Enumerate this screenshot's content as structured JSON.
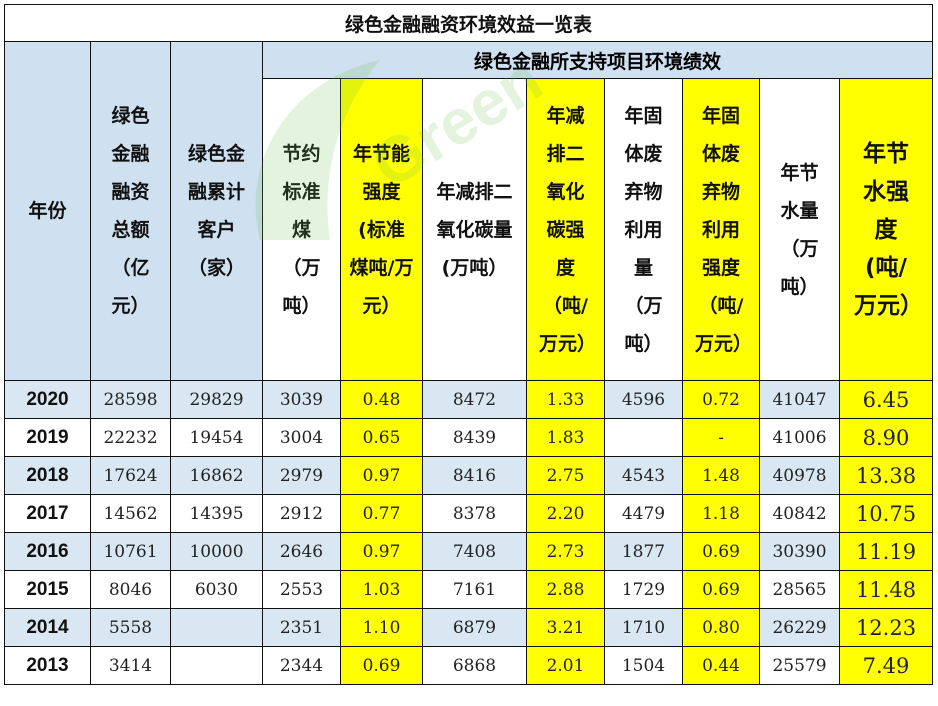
{
  "title": "绿色金融融资环境效益一览表",
  "group_header": "绿色金融所支持项目环境绩效",
  "columns": [
    "年份",
    "绿色金融融资总额（亿元）",
    "绿色金融累计客户（家）",
    "节约标准煤（万吨）",
    "年节能强度(标准煤吨/万元）",
    "年减排二氧化碳量(万吨）",
    "年减排二氧化碳强度（吨/万元）",
    "年固体废弃物利用量（万吨）",
    "年固体废弃物利用强度（吨/万元）",
    "年节水量（万吨）",
    "年节水强度(吨/万元）"
  ],
  "rows": [
    {
      "year": "2020",
      "v": [
        "28598",
        "29829",
        "3039",
        "0.48",
        "8472",
        "1.33",
        "4596",
        "0.72",
        "41047",
        "6.45"
      ]
    },
    {
      "year": "2019",
      "v": [
        "22232",
        "19454",
        "3004",
        "0.65",
        "8439",
        "1.83",
        "",
        "-",
        "41006",
        "8.90"
      ]
    },
    {
      "year": "2018",
      "v": [
        "17624",
        "16862",
        "2979",
        "0.97",
        "8416",
        "2.75",
        "4543",
        "1.48",
        "40978",
        "13.38"
      ]
    },
    {
      "year": "2017",
      "v": [
        "14562",
        "14395",
        "2912",
        "0.77",
        "8378",
        "2.20",
        "4479",
        "1.18",
        "40842",
        "10.75"
      ]
    },
    {
      "year": "2016",
      "v": [
        "10761",
        "10000",
        "2646",
        "0.97",
        "7408",
        "2.73",
        "1877",
        "0.69",
        "30390",
        "11.19"
      ]
    },
    {
      "year": "2015",
      "v": [
        "8046",
        "6030",
        "2553",
        "1.03",
        "7161",
        "2.88",
        "1729",
        "0.69",
        "28565",
        "11.48"
      ]
    },
    {
      "year": "2014",
      "v": [
        "5558",
        "",
        "2351",
        "1.10",
        "6879",
        "3.21",
        "1710",
        "0.80",
        "26229",
        "12.23"
      ]
    },
    {
      "year": "2013",
      "v": [
        "3414",
        "",
        "2344",
        "0.69",
        "6868",
        "2.01",
        "1504",
        "0.44",
        "25579",
        "7.49"
      ]
    }
  ],
  "watermark": "Green"
}
